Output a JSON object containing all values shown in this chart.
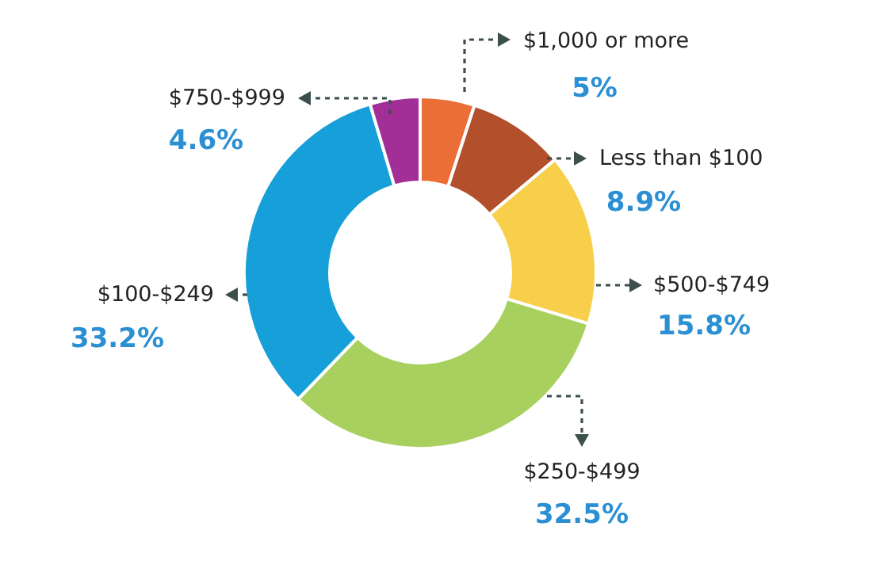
{
  "chart_data": {
    "type": "donut",
    "categories": [
      "$1,000 or more",
      "Less than $100",
      "$500-$749",
      "$250-$499",
      "$100-$249",
      "$750-$999"
    ],
    "values": [
      5,
      8.9,
      15.8,
      32.5,
      33.2,
      4.6
    ],
    "colors": [
      "#ea6e35",
      "#b2502c",
      "#f8cf4a",
      "#a8d05f",
      "#169fd8",
      "#a22f98"
    ],
    "value_labels": [
      "5%",
      "8.9%",
      "15.8%",
      "32.5%",
      "33.2%",
      "4.6%"
    ]
  }
}
